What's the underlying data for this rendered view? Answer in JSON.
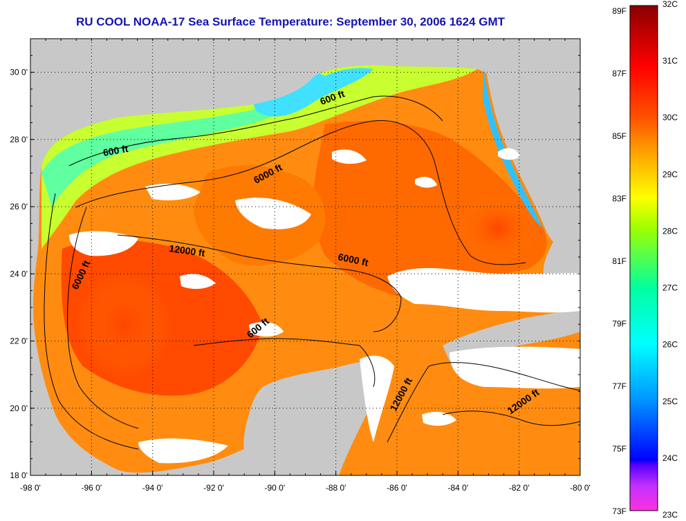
{
  "title": "RU COOL  NOAA-17  Sea Surface Temperature:  September 30, 2006 1624 GMT",
  "map": {
    "lon_ticks": [
      "-98 0'",
      "-96 0'",
      "-94 0'",
      "-92 0'",
      "-90 0'",
      "-88 0'",
      "-86 0'",
      "-84 0'",
      "-82 0'",
      "-80 0'"
    ],
    "lat_ticks": [
      "30 0'",
      "28 0'",
      "26 0'",
      "24 0'",
      "22 0'",
      "20 0'",
      "18 0'"
    ],
    "lon_range": [
      -98,
      -80
    ],
    "lat_range": [
      18,
      31
    ],
    "grid": "dotted",
    "land_color": "#c8c8c8",
    "cloud_color": "#ffffff",
    "contour_labels": [
      "600 ft",
      "600 ft",
      "6000 ft",
      "12000 ft",
      "6000 ft",
      "6000 ft",
      "600 ft",
      "12000 ft",
      "12000 ft"
    ]
  },
  "colorbar": {
    "fahrenheit_labels": [
      "89F",
      "87F",
      "85F",
      "83F",
      "81F",
      "79F",
      "77F",
      "75F",
      "73F"
    ],
    "celsius_labels": [
      "32C",
      "31C",
      "30C",
      "29C",
      "28C",
      "27C",
      "26C",
      "25C",
      "24C",
      "23C"
    ],
    "colors": [
      "#ff30e0",
      "#9a30ff",
      "#0000ff",
      "#0096ff",
      "#00ffff",
      "#00ffa0",
      "#a0ff00",
      "#ffff00",
      "#ff9600",
      "#ff0000",
      "#8a0000"
    ]
  }
}
